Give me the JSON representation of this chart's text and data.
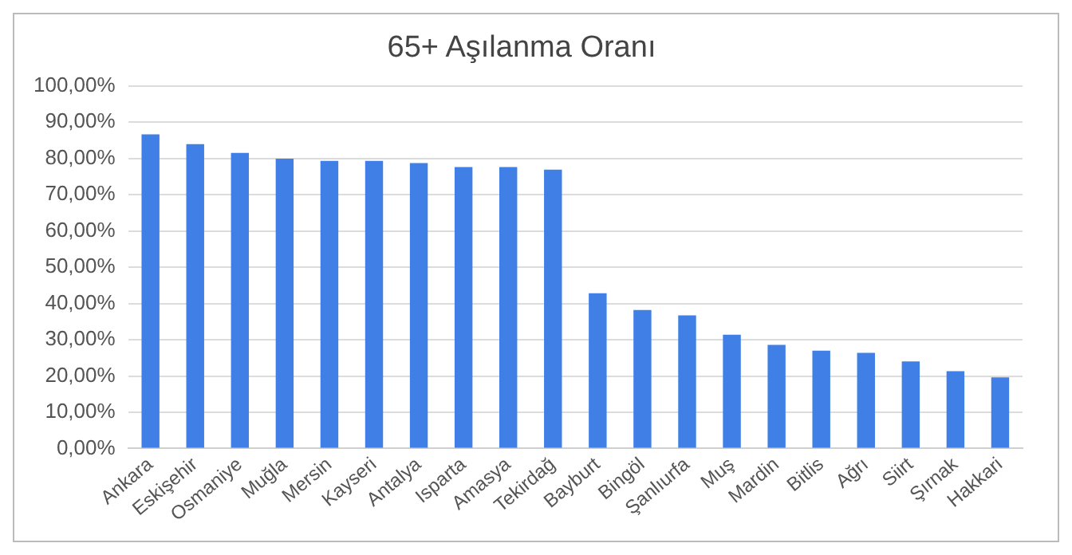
{
  "chart_data": {
    "type": "bar",
    "title": "65+ Aşılanma Oranı",
    "categories": [
      "Ankara",
      "Eskişehir",
      "Osmaniye",
      "Muğla",
      "Mersin",
      "Kayseri",
      "Antalya",
      "Isparta",
      "Amasya",
      "Tekirdağ",
      "Bayburt",
      "Bingöl",
      "Şanlıurfa",
      "Muş",
      "Mardin",
      "Bitlis",
      "Ağrı",
      "Siirt",
      "Şırnak",
      "Hakkari"
    ],
    "values": [
      86.6,
      83.9,
      81.5,
      79.9,
      79.3,
      79.3,
      78.7,
      77.6,
      77.6,
      76.9,
      42.8,
      38.2,
      36.7,
      31.4,
      28.6,
      27.0,
      26.4,
      24.0,
      21.3,
      19.6
    ],
    "color": "#3f7fe6",
    "ylim": [
      0,
      100
    ],
    "yticks": [
      {
        "value": 0,
        "label": "0,00%"
      },
      {
        "value": 10,
        "label": "10,00%"
      },
      {
        "value": 20,
        "label": "20,00%"
      },
      {
        "value": 30,
        "label": "30,00%"
      },
      {
        "value": 40,
        "label": "40,00%"
      },
      {
        "value": 50,
        "label": "50,00%"
      },
      {
        "value": 60,
        "label": "60,00%"
      },
      {
        "value": 70,
        "label": "70,00%"
      },
      {
        "value": 80,
        "label": "80,00%"
      },
      {
        "value": 90,
        "label": "90,00%"
      },
      {
        "value": 100,
        "label": "100,00%"
      }
    ],
    "grid": "y"
  }
}
